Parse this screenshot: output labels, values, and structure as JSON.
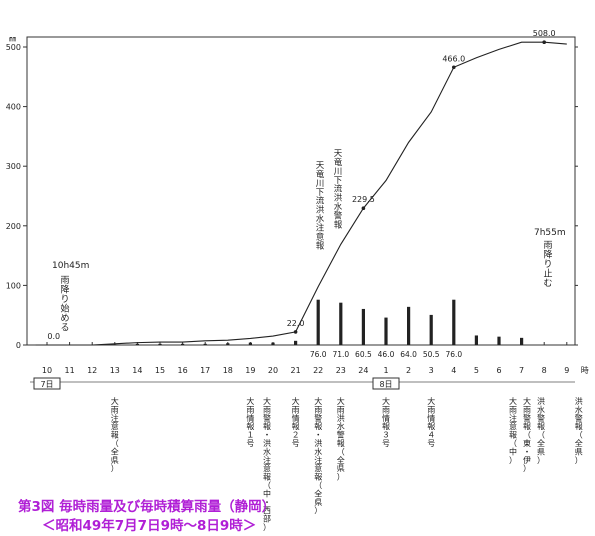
{
  "chart_data": {
    "type": "bar+line",
    "title": "第3図 毎時雨量及び毎時積算雨量（静岡）",
    "subtitle": "＜昭和49年7月7日9時～8日9時＞",
    "y_unit_label": "㎜",
    "ylim": [
      0,
      500
    ],
    "y_ticks": [
      0,
      100,
      200,
      300,
      400,
      500
    ],
    "x_hours": [
      "10",
      "11",
      "12",
      "13",
      "14",
      "15",
      "16",
      "17",
      "18",
      "19",
      "20",
      "21",
      "22",
      "23",
      "24",
      "1",
      "2",
      "3",
      "4",
      "5",
      "6",
      "7",
      "8",
      "9"
    ],
    "x_unit_label": "時",
    "day_labels": [
      {
        "text": "7日",
        "hour_index": 0
      },
      {
        "text": "8日",
        "hour_index": 15
      }
    ],
    "cumulative": {
      "x": [
        9.5,
        10,
        11,
        12,
        13,
        14,
        15,
        16,
        17,
        18,
        19,
        20,
        21,
        22,
        23,
        24,
        25,
        26,
        27,
        28,
        29,
        30,
        31,
        32,
        33
      ],
      "y": [
        0,
        0,
        0,
        0,
        2,
        4,
        5,
        5,
        7,
        8,
        11,
        15,
        22,
        98,
        169,
        229.5,
        276,
        340,
        391,
        466,
        482,
        496,
        508,
        508,
        505
      ]
    },
    "cumulative_labels": [
      {
        "text": "0.0",
        "x": 10.3,
        "y": 0
      },
      {
        "text": "22.0",
        "x": 21,
        "y": 22
      },
      {
        "text": "229.5",
        "x": 24,
        "y": 229.5
      },
      {
        "text": "466.0",
        "x": 28,
        "y": 466
      },
      {
        "text": "508.0",
        "x": 32,
        "y": 508
      }
    ],
    "hourly_bars": {
      "x": [
        13,
        14,
        15,
        16,
        17,
        18,
        19,
        20,
        21,
        22,
        23,
        24,
        25,
        26,
        27,
        28,
        29,
        30,
        31,
        32
      ],
      "y": [
        1,
        2,
        2,
        2,
        2,
        3,
        4,
        4,
        7,
        76,
        71,
        60.5,
        46,
        64,
        50.5,
        76,
        16,
        14,
        12,
        0
      ]
    },
    "bar_value_labels": [
      {
        "text": "76.0",
        "hour": "22"
      },
      {
        "text": "71.0",
        "hour": "23"
      },
      {
        "text": "60.5",
        "hour": "24"
      },
      {
        "text": "46.0",
        "hour": "1"
      },
      {
        "text": "64.0",
        "hour": "2"
      },
      {
        "text": "50.5",
        "hour": "3"
      },
      {
        "text": "76.0",
        "hour": "4"
      }
    ],
    "plot_annotations": [
      {
        "time": "10h45m",
        "text": "雨降り始める"
      },
      {
        "text": "天竜川下流洪水注意報"
      },
      {
        "text": "天竜川下流洪水警報"
      },
      {
        "time": "7h55m",
        "text": "雨降り止む"
      }
    ],
    "warnings": [
      {
        "text": "大雨注意報（全県）",
        "hour": "13"
      },
      {
        "text": "大雨情報１号",
        "hour": "19"
      },
      {
        "text": "大雨警報・洪水注意報（中・西部）",
        "hour": "20"
      },
      {
        "text": "大雨情報２号",
        "hour": "21"
      },
      {
        "text": "大雨警報・洪水注意報（全県）",
        "hour": "22"
      },
      {
        "text": "大雨洪水警報（全県）",
        "hour": "23"
      },
      {
        "text": "大雨情報３号",
        "hour": "1"
      },
      {
        "text": "大雨情報４号",
        "hour": "3"
      },
      {
        "text": "大雨注意報（中）",
        "hour": "6"
      },
      {
        "text": "大雨警報（東・伊）",
        "hour": "6"
      },
      {
        "text": "洪水警報（全県）",
        "hour": "7"
      },
      {
        "text": "洪水警報（全県）",
        "hour": "9"
      }
    ],
    "caption_color": "#b01fd6",
    "line_color": "#222222",
    "bar_color": "#222222"
  }
}
